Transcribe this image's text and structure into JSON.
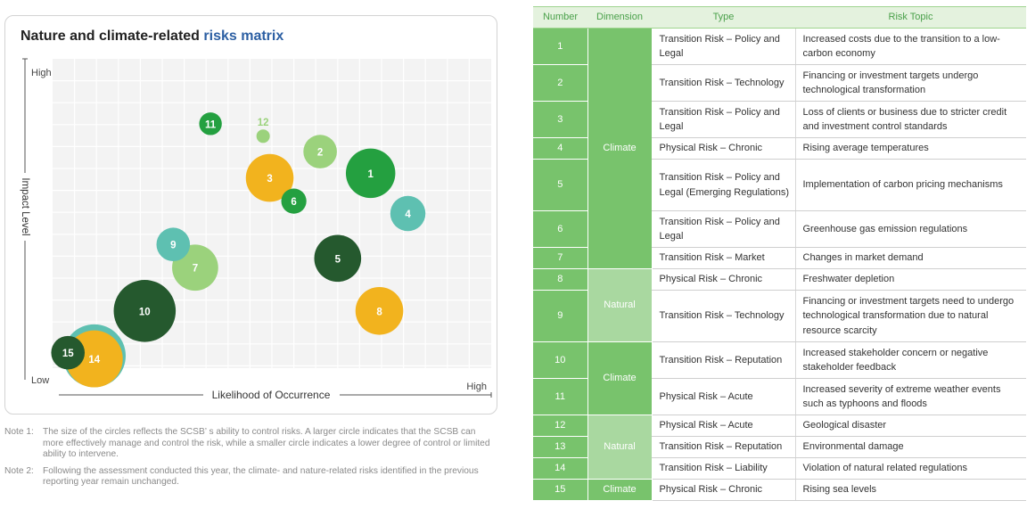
{
  "matrix": {
    "title_main": "Nature and climate-related ",
    "title_accent": "risks matrix",
    "y_axis_label": "Impact Level",
    "x_axis_label": "Likelihood of Occurrence",
    "y_high": "High",
    "y_low": "Low",
    "x_high": "High"
  },
  "colors": {
    "dark_green": "#25592e",
    "green": "#24a040",
    "light_green": "#9bd27c",
    "teal": "#5ec0b1",
    "amber": "#f2b31e",
    "accent_blue": "#2c5fa3",
    "header_green": "#4aa04a",
    "climate_cell": "#78c36c",
    "natural_cell": "#a9d8a0"
  },
  "chart_data": {
    "type": "scatter",
    "xlabel": "Likelihood of Occurrence",
    "ylabel": "Impact Level",
    "xlim": [
      0,
      10
    ],
    "ylim": [
      0,
      10
    ],
    "size_meaning": "ability to control risk",
    "points": [
      {
        "id": "1",
        "x": 7.25,
        "y": 6.3,
        "size": 0.59,
        "color": "#24a040"
      },
      {
        "id": "2",
        "x": 6.1,
        "y": 7.0,
        "size": 0.4,
        "color": "#9bd27c"
      },
      {
        "id": "3",
        "x": 4.95,
        "y": 6.15,
        "size": 0.57,
        "color": "#f2b31e"
      },
      {
        "id": "4",
        "x": 8.1,
        "y": 5.0,
        "size": 0.42,
        "color": "#5ec0b1"
      },
      {
        "id": "5",
        "x": 6.5,
        "y": 3.55,
        "size": 0.56,
        "color": "#25592e"
      },
      {
        "id": "6",
        "x": 5.5,
        "y": 5.4,
        "size": 0.3,
        "color": "#24a040"
      },
      {
        "id": "7",
        "x": 3.25,
        "y": 3.25,
        "size": 0.55,
        "color": "#9bd27c"
      },
      {
        "id": "8",
        "x": 7.45,
        "y": 1.85,
        "size": 0.57,
        "color": "#f2b31e"
      },
      {
        "id": "9",
        "x": 2.75,
        "y": 4.0,
        "size": 0.4,
        "color": "#5ec0b1"
      },
      {
        "id": "10",
        "x": 2.1,
        "y": 1.85,
        "size": 0.74,
        "color": "#25592e"
      },
      {
        "id": "11",
        "x": 3.6,
        "y": 7.9,
        "size": 0.27,
        "color": "#24a040"
      },
      {
        "id": "12",
        "x": 4.8,
        "y": 7.5,
        "size": 0.16,
        "color": "#9bd27c"
      },
      {
        "id": "13",
        "x": 0.95,
        "y": 0.4,
        "size": 0.75,
        "color": "#5ec0b1"
      },
      {
        "id": "14",
        "x": 0.95,
        "y": 0.3,
        "size": 0.68,
        "color": "#f2b31e"
      },
      {
        "id": "15",
        "x": 0.35,
        "y": 0.5,
        "size": 0.4,
        "color": "#25592e"
      }
    ]
  },
  "notes": [
    {
      "label": "Note 1:",
      "text": "The size of the circles reflects the SCSB’ s ability to control risks. A larger circle indicates that the SCSB can more effectively manage and control the risk, while a smaller circle indicates a lower degree of control or limited ability to intervene."
    },
    {
      "label": "Note 2:",
      "text": "Following the assessment conducted this year, the climate- and nature-related risks identified in the previous reporting year remain unchanged."
    }
  ],
  "table": {
    "headers": [
      "Number",
      "Dimension",
      "Type",
      "Risk Topic"
    ],
    "dimension_groups": [
      {
        "label": "Climate",
        "kind": "climate",
        "start": 0,
        "span": 7
      },
      {
        "label": "Natural",
        "kind": "natural",
        "start": 7,
        "span": 2
      },
      {
        "label": "Climate",
        "kind": "climate",
        "start": 9,
        "span": 2
      },
      {
        "label": "Natural",
        "kind": "natural",
        "start": 11,
        "span": 3
      },
      {
        "label": "Climate",
        "kind": "climate",
        "start": 14,
        "span": 1
      }
    ],
    "rows": [
      {
        "number": "1",
        "type": "Transition Risk – Policy and Legal",
        "topic": "Increased costs due to the transition to a low-carbon economy"
      },
      {
        "number": "2",
        "type": "Transition Risk – Technology",
        "topic": "Financing or investment targets undergo technological transformation"
      },
      {
        "number": "3",
        "type": "Transition Risk – Policy and Legal",
        "topic": "Loss of clients or business due to stricter credit and investment control standards"
      },
      {
        "number": "4",
        "type": "Physical Risk – Chronic",
        "topic": "Rising average temperatures"
      },
      {
        "number": "5",
        "type": "Transition Risk – Policy and Legal (Emerging Regulations)",
        "topic": "Implementation of carbon pricing mechanisms"
      },
      {
        "number": "6",
        "type": "Transition Risk – Policy and Legal",
        "topic": "Greenhouse gas emission regulations"
      },
      {
        "number": "7",
        "type": "Transition Risk – Market",
        "topic": "Changes in market demand"
      },
      {
        "number": "8",
        "type": "Physical Risk – Chronic",
        "topic": "Freshwater depletion"
      },
      {
        "number": "9",
        "type": "Transition Risk – Technology",
        "topic": "Financing or investment targets need to undergo technological transformation due to natural resource scarcity"
      },
      {
        "number": "10",
        "type": "Transition Risk – Reputation",
        "topic": "Increased stakeholder concern or negative stakeholder feedback"
      },
      {
        "number": "11",
        "type": "Physical Risk – Acute",
        "topic": "Increased severity of extreme weather events such as typhoons and floods"
      },
      {
        "number": "12",
        "type": "Physical Risk – Acute",
        "topic": "Geological disaster"
      },
      {
        "number": "13",
        "type": "Transition Risk – Reputation",
        "topic": "Environmental damage"
      },
      {
        "number": "14",
        "type": "Transition Risk – Liability",
        "topic": "Violation of natural related regulations"
      },
      {
        "number": "15",
        "type": "Physical Risk – Chronic",
        "topic": "Rising sea levels"
      }
    ]
  }
}
